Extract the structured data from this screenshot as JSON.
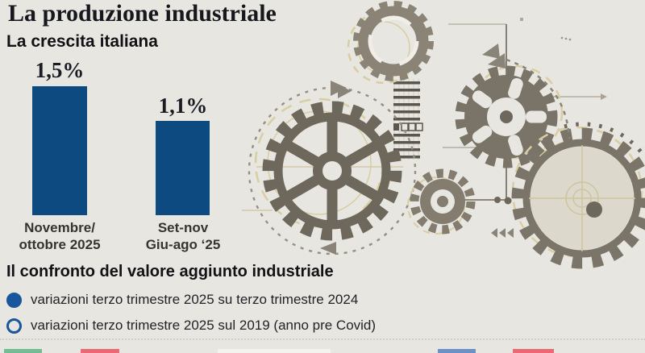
{
  "page": {
    "background": "#e7e6e0"
  },
  "title": "La produzione industriale",
  "chart": {
    "subtitle": "La crescita italiana",
    "chart_data": {
      "type": "bar",
      "categories": [
        "Novembre/ottobre 2025",
        "Set-nov Giu-ago '25"
      ],
      "categories_lines": [
        [
          "Novembre/",
          "ottobre 2025"
        ],
        [
          "Set-nov",
          "Giu-ago ‘25"
        ]
      ],
      "values": [
        1.5,
        1.1
      ],
      "value_labels": [
        "1,5%",
        "1,1%"
      ],
      "unit": "%",
      "ylim": [
        0,
        1.5
      ],
      "bar_color": "#0d4a80",
      "grid": false,
      "legend_position": "none"
    }
  },
  "comparison": {
    "heading": "Il confronto del valore aggiunto industriale",
    "legend": [
      {
        "marker": "filled-circle",
        "color": "#1a569b",
        "label": "variazioni terzo trimestre 2025 su terzo trimestre 2024"
      },
      {
        "marker": "open-circle",
        "color": "#1a569b",
        "label": "variazioni terzo trimestre 2025 sul 2019 (anno pre Covid)"
      }
    ]
  },
  "illustration": {
    "name": "gears-illustration",
    "palette": {
      "gear_dark": "#6e675c",
      "gear_mid": "#7a7367",
      "gear_light": "#8a8376",
      "outline_tan": "#d9cda1",
      "dash_gray": "#958f83"
    }
  },
  "cropped_chart_strips": [
    {
      "color": "#72bd93"
    },
    {
      "color": "#e96a73"
    },
    {
      "color": "#f4f3ee"
    },
    {
      "color": "#6a92c8"
    },
    {
      "color": "#e96a73"
    }
  ]
}
